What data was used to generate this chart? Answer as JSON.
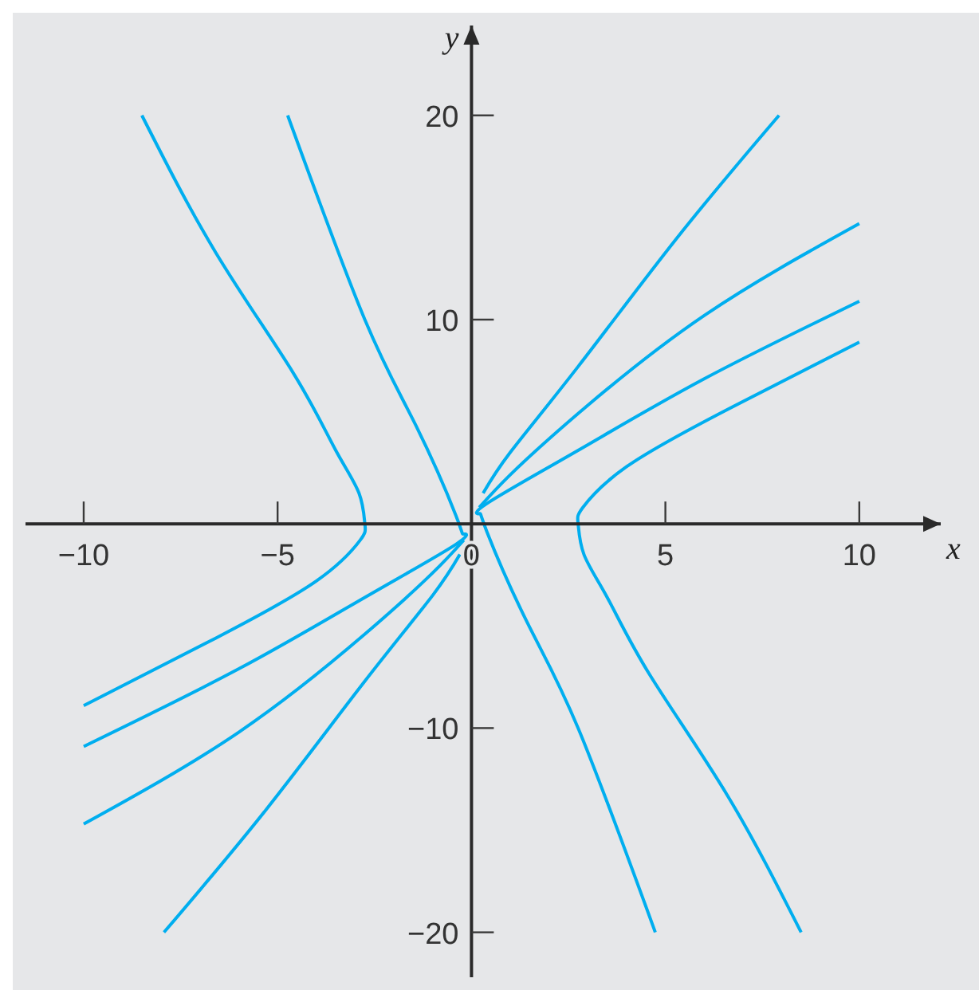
{
  "chart_data": {
    "type": "line",
    "xlabel": "x",
    "ylabel": "y",
    "xlim": [
      -11.5,
      12.1
    ],
    "ylim": [
      -22.2,
      24.4
    ],
    "xticks": [
      {
        "value": -10,
        "label": "−10"
      },
      {
        "value": -5,
        "label": "−5"
      },
      0,
      5,
      10
    ],
    "yticks": [
      {
        "value": -20,
        "label": "−20"
      },
      {
        "value": -10,
        "label": "−10"
      },
      10,
      20
    ],
    "grid": false,
    "legend": false,
    "marker": "none",
    "line_style": "solid",
    "series": [
      {
        "color": "#00aeef",
        "x": [
          -8.5,
          -6.6,
          -4.6,
          -3.5,
          -2.9,
          -2.75,
          -2.87,
          -4.0,
          -6.6,
          -10
        ],
        "values": [
          20,
          13.3,
          7.4,
          3.6,
          1.5,
          0,
          -0.8,
          -2.8,
          -5.6,
          -8.9
        ]
      },
      {
        "color": "#00aeef",
        "x": [
          -4.74,
          -2.75,
          -1.43,
          -0.4,
          -0.2,
          -0.4,
          -2.75,
          -6.0,
          -10
        ],
        "values": [
          20,
          10,
          4.8,
          0.4,
          -0.5,
          -1.0,
          -3.6,
          -7.1,
          -10.9
        ]
      },
      {
        "color": "#00aeef",
        "x": [
          -0.2,
          -1,
          -2.75,
          -6,
          -10
        ],
        "values": [
          -0.8,
          -2.4,
          -5.4,
          -10.2,
          -14.7
        ]
      },
      {
        "color": "#00aeef",
        "x": [
          -0.3,
          -1,
          -2.75,
          -5.3,
          -7.93
        ],
        "values": [
          -1.5,
          -3.5,
          -7.7,
          -14.0,
          -20
        ]
      },
      {
        "color": "#00aeef",
        "x": [
          8.5,
          6.6,
          4.6,
          3.5,
          2.9,
          2.75,
          2.87,
          4.0,
          6.6,
          10
        ],
        "values": [
          -20,
          -13.3,
          -7.4,
          -3.6,
          -1.5,
          0,
          0.8,
          2.8,
          5.6,
          8.9
        ]
      },
      {
        "color": "#00aeef",
        "x": [
          4.74,
          2.75,
          1.43,
          0.4,
          0.2,
          0.4,
          2.75,
          6.0,
          10
        ],
        "values": [
          -20,
          -10,
          -4.8,
          -0.4,
          0.5,
          1.0,
          3.6,
          7.1,
          10.9
        ]
      },
      {
        "color": "#00aeef",
        "x": [
          0.2,
          1,
          2.75,
          6,
          10
        ],
        "values": [
          0.8,
          2.4,
          5.4,
          10.2,
          14.7
        ]
      },
      {
        "color": "#00aeef",
        "x": [
          0.3,
          1,
          2.75,
          5.3,
          7.93
        ],
        "values": [
          1.5,
          3.5,
          7.7,
          14.0,
          20
        ]
      }
    ]
  }
}
